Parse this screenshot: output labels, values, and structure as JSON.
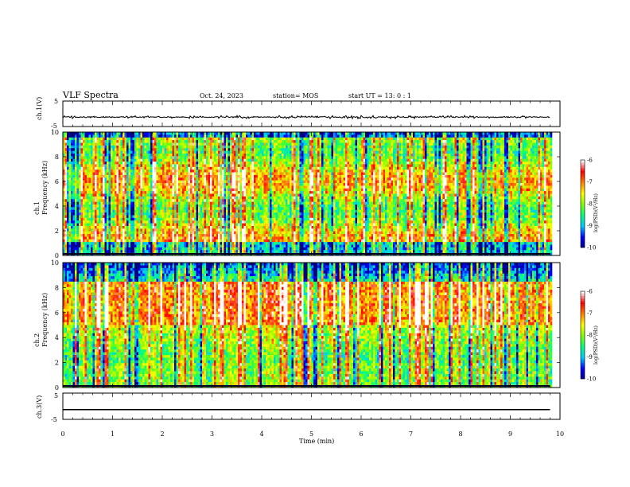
{
  "header": {
    "title": "VLF Spectra",
    "date": "Oct. 24, 2023",
    "station": "station= MOS",
    "start_ut": "start  UT =   13: 0   : 1"
  },
  "chart_data": [
    {
      "type": "line",
      "panel": "ch1-waveform",
      "ylabel": "ch.1(V)",
      "ylim": [
        -5,
        5
      ],
      "yticks": [
        "5",
        "-5"
      ],
      "xlim": [
        0,
        10
      ],
      "signal_level": -1.3,
      "signal_extent_min": [
        0,
        9.8
      ]
    },
    {
      "type": "heatmap",
      "panel": "ch1-spectrogram",
      "ylabel": "ch.1 Frequency (kHz)",
      "ylim": [
        0,
        10
      ],
      "yticks": [
        "0",
        "2",
        "4",
        "6",
        "8",
        "10"
      ],
      "xlim": [
        0,
        10
      ],
      "data_extent_min": [
        0,
        9.8
      ],
      "dominant_band_khz": [
        1,
        9.5
      ],
      "colorbar": {
        "label": "log(PSD)(V²/Hz)",
        "range": [
          -10,
          -6
        ],
        "ticks": [
          "-6",
          "-7",
          "-8",
          "-9",
          "-10"
        ],
        "colors": [
          "#000080",
          "#0000ff",
          "#00c8ff",
          "#00ff80",
          "#80ff00",
          "#ffff00",
          "#ff8000",
          "#ff0000",
          "#ffffff"
        ]
      }
    },
    {
      "type": "heatmap",
      "panel": "ch2-spectrogram",
      "ylabel": "ch.2 Frequency (kHz)",
      "ylim": [
        0,
        10
      ],
      "yticks": [
        "0",
        "2",
        "4",
        "6",
        "8",
        "10"
      ],
      "xlim": [
        0,
        10
      ],
      "data_extent_min": [
        0,
        9.8
      ],
      "dominant_band_khz": [
        5,
        8.5
      ],
      "colorbar": {
        "label": "log(PSD)(V²/Hz)",
        "range": [
          -10,
          -6
        ],
        "ticks": [
          "-6",
          "-7",
          "-8",
          "-9",
          "-10"
        ],
        "colors": [
          "#000080",
          "#0000ff",
          "#00c8ff",
          "#00ff80",
          "#80ff00",
          "#ffff00",
          "#ff8000",
          "#ff0000",
          "#ffffff"
        ]
      }
    },
    {
      "type": "line",
      "panel": "ch3-waveform",
      "ylabel": "ch.3(V)",
      "ylim": [
        -5,
        5
      ],
      "yticks": [
        "5",
        "-5"
      ],
      "xlim": [
        0,
        10
      ],
      "signal_level": -1.3,
      "signal_extent_min": [
        0,
        9.8
      ]
    }
  ],
  "x_axis": {
    "label": "Time  (min)",
    "ticks": [
      "0",
      "1",
      "2",
      "3",
      "4",
      "5",
      "6",
      "7",
      "8",
      "9",
      "10"
    ]
  }
}
